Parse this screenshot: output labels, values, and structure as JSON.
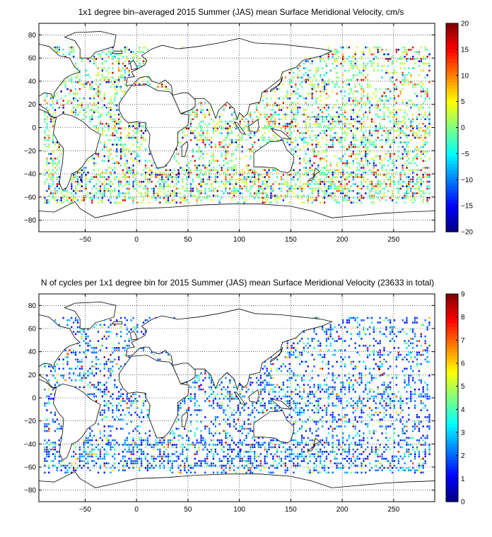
{
  "chart_data": [
    {
      "type": "heatmap",
      "title": "1x1 degree bin–averaged 2015 Summer (JAS) mean Surface Meridional Velocity, cm/s",
      "xlabel": "",
      "ylabel": "",
      "xlim": [
        -95,
        290
      ],
      "ylim": [
        -90,
        90
      ],
      "x_ticks": [
        -50,
        0,
        50,
        100,
        150,
        200,
        250
      ],
      "y_ticks": [
        -80,
        -60,
        -40,
        -20,
        0,
        20,
        40,
        60,
        80
      ],
      "grid": true,
      "colorbar": {
        "ticks": [
          -20,
          -15,
          -10,
          -5,
          0,
          5,
          10,
          15,
          20
        ],
        "range": [
          -20,
          20
        ],
        "colormap": "jet"
      },
      "mean_seed": 7,
      "bins": [
        {
          "x": -65,
          "y": 32,
          "value": 14
        },
        {
          "x": -50,
          "y": 38,
          "value": -12
        },
        {
          "x": -20,
          "y": -30,
          "value": 8
        },
        {
          "x": 40,
          "y": -40,
          "value": -16
        },
        {
          "x": 150,
          "y": 5,
          "value": 18
        },
        {
          "x": 160,
          "y": -10,
          "value": -9
        },
        {
          "x": 240,
          "y": 30,
          "value": 12
        },
        {
          "x": -55,
          "y": -45,
          "value": -18
        }
      ]
    },
    {
      "type": "heatmap",
      "title": "N of cycles per 1x1 degree bin for 2015 Summer (JAS) mean Surface Meridional Velocity (23633 in total)",
      "xlabel": "",
      "ylabel": "",
      "xlim": [
        -95,
        290
      ],
      "ylim": [
        -90,
        90
      ],
      "x_ticks": [
        -50,
        0,
        50,
        100,
        150,
        200,
        250
      ],
      "y_ticks": [
        -80,
        -60,
        -40,
        -20,
        0,
        20,
        40,
        60,
        80
      ],
      "grid": true,
      "colorbar": {
        "ticks": [
          0,
          1,
          2,
          3,
          4,
          5,
          6,
          7,
          8,
          9
        ],
        "range": [
          0,
          9
        ],
        "colormap": "jet"
      },
      "bins": [
        {
          "x": 235,
          "y": 25,
          "value": 9
        },
        {
          "x": 238,
          "y": 20,
          "value": 8
        },
        {
          "x": -68,
          "y": 38,
          "value": 7
        },
        {
          "x": 145,
          "y": 35,
          "value": 6
        },
        {
          "x": 60,
          "y": 10,
          "value": 8
        },
        {
          "x": -30,
          "y": -40,
          "value": 2
        },
        {
          "x": 100,
          "y": -45,
          "value": 1
        }
      ]
    }
  ],
  "colors": {
    "jet_low": "#00008f",
    "jet_mid": "#80ff80",
    "jet_high": "#800000",
    "land": "#ffffff",
    "coast": "#000000"
  }
}
